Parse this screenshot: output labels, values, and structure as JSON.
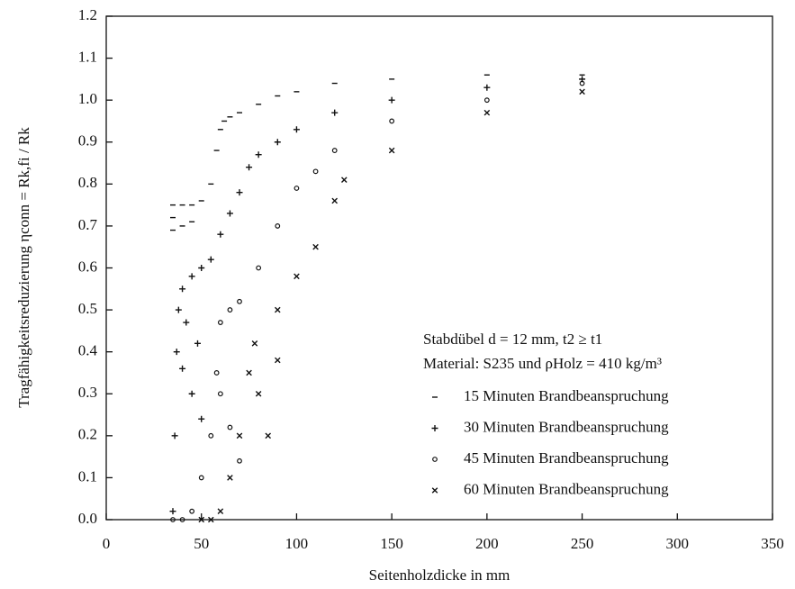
{
  "chart_data": {
    "type": "scatter",
    "xlabel": "Seitenholzdicke in mm",
    "ylabel": "Tragfähigkeitsreduzierung ηconn = Rk,fi / Rk",
    "annotations": [
      "Stabdübel d = 12 mm, t2 ≥ t1",
      "Material: S235 und ρHolz = 410 kg/m³"
    ],
    "xlim": [
      0,
      350
    ],
    "xticks": [
      0,
      50,
      100,
      150,
      200,
      250,
      300,
      350
    ],
    "ylim": [
      0,
      1.2
    ],
    "yticks": [
      {
        "value": 0,
        "label": "0.0"
      },
      0.1,
      0.2,
      0.3,
      0.4,
      0.5,
      0.6,
      0.7,
      0.8,
      0.9,
      {
        "value": 1,
        "label": "1.0"
      },
      1.1,
      1.2
    ],
    "grid": false,
    "series": [
      {
        "name": "15 Minuten Brandbeanspruchung",
        "color": "#111111",
        "marker": "dash",
        "x": [
          35,
          35,
          35,
          40,
          40,
          45,
          45,
          50,
          55,
          58,
          60,
          62,
          65,
          70,
          80,
          90,
          100,
          120,
          150,
          200,
          250
        ],
        "values": [
          0.75,
          0.72,
          0.69,
          0.75,
          0.7,
          0.75,
          0.71,
          0.76,
          0.8,
          0.88,
          0.93,
          0.95,
          0.96,
          0.97,
          0.99,
          1.01,
          1.02,
          1.04,
          1.05,
          1.06,
          1.06
        ]
      },
      {
        "name": "30 Minuten Brandbeanspruchung",
        "color": "#111111",
        "marker": "plus",
        "x": [
          35,
          36,
          37,
          38,
          40,
          40,
          42,
          45,
          45,
          48,
          50,
          50,
          55,
          60,
          65,
          70,
          75,
          80,
          90,
          100,
          120,
          150,
          200,
          250
        ],
        "values": [
          0.02,
          0.2,
          0.4,
          0.5,
          0.55,
          0.36,
          0.47,
          0.58,
          0.3,
          0.42,
          0.6,
          0.24,
          0.62,
          0.68,
          0.73,
          0.78,
          0.84,
          0.87,
          0.9,
          0.93,
          0.97,
          1.0,
          1.03,
          1.05
        ]
      },
      {
        "name": "45 Minuten Brandbeanspruchung",
        "color": "#111111",
        "marker": "circle",
        "x": [
          35,
          40,
          45,
          50,
          55,
          58,
          60,
          60,
          65,
          65,
          70,
          70,
          80,
          90,
          100,
          110,
          120,
          150,
          200,
          250
        ],
        "values": [
          0.0,
          0.0,
          0.02,
          0.1,
          0.2,
          0.35,
          0.47,
          0.3,
          0.5,
          0.22,
          0.52,
          0.14,
          0.6,
          0.7,
          0.79,
          0.83,
          0.88,
          0.95,
          1.0,
          1.04
        ]
      },
      {
        "name": "60 Minuten Brandbeanspruchung",
        "color": "#111111",
        "marker": "x",
        "x": [
          50,
          55,
          60,
          65,
          70,
          75,
          78,
          80,
          85,
          90,
          90,
          100,
          110,
          120,
          125,
          150,
          200,
          250
        ],
        "values": [
          0.0,
          0.0,
          0.02,
          0.1,
          0.2,
          0.35,
          0.42,
          0.3,
          0.2,
          0.5,
          0.38,
          0.58,
          0.65,
          0.76,
          0.81,
          0.88,
          0.97,
          1.02
        ]
      }
    ]
  }
}
